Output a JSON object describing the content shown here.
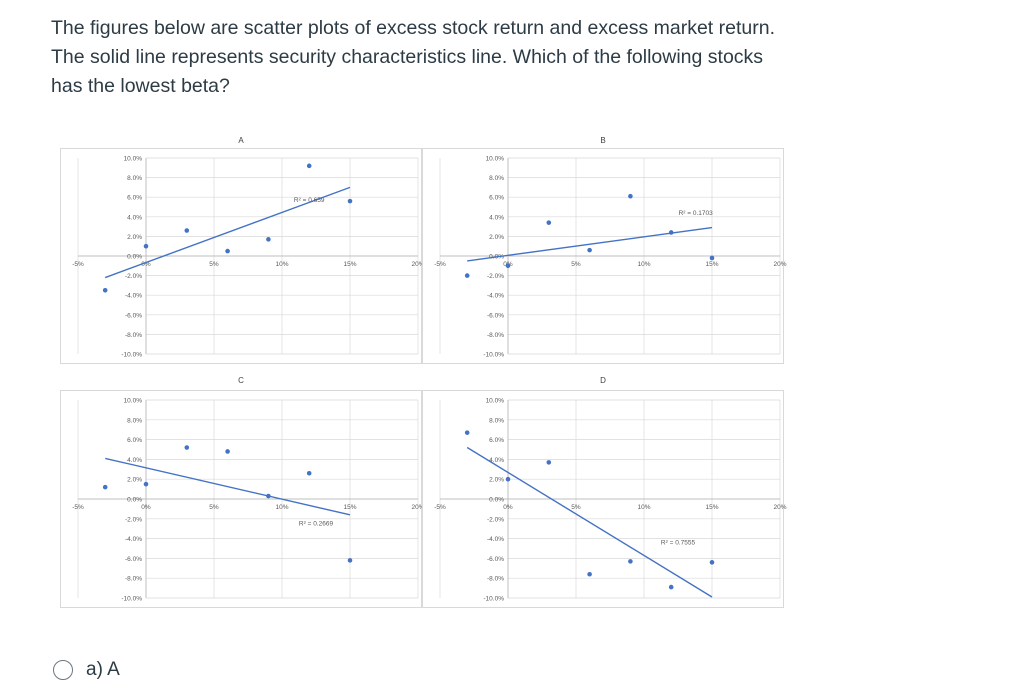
{
  "question": {
    "line1": "The figures below are scatter plots of excess stock return and excess market return.",
    "line2": "The solid line represents security characteristics line. Which of the following stocks",
    "line3": "has the lowest beta?"
  },
  "colors": {
    "points": "#4472c4",
    "line": "#4472c4",
    "grid": "#d9d9d9",
    "axis": "#bfbfbf",
    "label": "#595959"
  },
  "chart_data": [
    {
      "type": "scatter",
      "title": "A",
      "r2_label": "R² = 0.659",
      "xlim": [
        -5,
        20
      ],
      "ylim": [
        -10,
        10
      ],
      "x_ticks": [
        "-5%",
        "0%",
        "5%",
        "10%",
        "15%",
        "20%"
      ],
      "y_ticks": [
        "10.0%",
        "8.0%",
        "6.0%",
        "4.0%",
        "2.0%",
        "0.0%",
        "-2.0%",
        "-4.0%",
        "-6.0%",
        "-8.0%",
        "-10.0%"
      ],
      "points": [
        [
          -3,
          -3.5
        ],
        [
          0,
          1
        ],
        [
          3,
          2.6
        ],
        [
          6,
          0.5
        ],
        [
          9,
          1.7
        ],
        [
          12,
          9.2
        ],
        [
          15,
          5.6
        ]
      ],
      "trendline": [
        [
          -3,
          -2.2
        ],
        [
          15,
          7
        ]
      ],
      "grid": true,
      "legend": "none"
    },
    {
      "type": "scatter",
      "title": "B",
      "r2_label": "R² = 0.1703",
      "xlim": [
        -5,
        20
      ],
      "ylim": [
        -10,
        10
      ],
      "x_ticks": [
        "-5%",
        "0%",
        "5%",
        "10%",
        "15%",
        "20%"
      ],
      "y_ticks": [
        "10.0%",
        "8.0%",
        "6.0%",
        "4.0%",
        "2.0%",
        "0.0%",
        "-2.0%",
        "-4.0%",
        "-6.0%",
        "-8.0%",
        "-10.0%"
      ],
      "points": [
        [
          -3,
          -2
        ],
        [
          0,
          -1
        ],
        [
          3,
          3.4
        ],
        [
          6,
          0.6
        ],
        [
          9,
          6.1
        ],
        [
          12,
          2.4
        ],
        [
          15,
          -0.2
        ]
      ],
      "trendline": [
        [
          -3,
          -0.5
        ],
        [
          15,
          2.9
        ]
      ],
      "grid": true,
      "legend": "none"
    },
    {
      "type": "scatter",
      "title": "C",
      "r2_label": "R² = 0.2669",
      "xlim": [
        -5,
        20
      ],
      "ylim": [
        -10,
        10
      ],
      "x_ticks": [
        "-5%",
        "0%",
        "5%",
        "10%",
        "15%",
        "20%"
      ],
      "y_ticks": [
        "10.0%",
        "8.0%",
        "6.0%",
        "4.0%",
        "2.0%",
        "0.0%",
        "-2.0%",
        "-4.0%",
        "-6.0%",
        "-8.0%",
        "-10.0%"
      ],
      "points": [
        [
          -3,
          1.2
        ],
        [
          0,
          1.5
        ],
        [
          3,
          5.2
        ],
        [
          6,
          4.8
        ],
        [
          9,
          0.3
        ],
        [
          12,
          2.6
        ],
        [
          15,
          -6.2
        ]
      ],
      "trendline": [
        [
          -3,
          4.1
        ],
        [
          15,
          -1.6
        ]
      ],
      "grid": true,
      "legend": "none"
    },
    {
      "type": "scatter",
      "title": "D",
      "r2_label": "R² = 0.7555",
      "xlim": [
        -5,
        20
      ],
      "ylim": [
        -10,
        10
      ],
      "x_ticks": [
        "-5%",
        "0%",
        "5%",
        "10%",
        "15%",
        "20%"
      ],
      "y_ticks": [
        "10.0%",
        "8.0%",
        "6.0%",
        "4.0%",
        "2.0%",
        "0.0%",
        "-2.0%",
        "-4.0%",
        "-6.0%",
        "-8.0%",
        "-10.0%"
      ],
      "points": [
        [
          -3,
          6.7
        ],
        [
          0,
          2
        ],
        [
          3,
          3.7
        ],
        [
          6,
          -7.6
        ],
        [
          9,
          -6.3
        ],
        [
          12,
          -8.9
        ],
        [
          15,
          -6.4
        ]
      ],
      "trendline": [
        [
          -3,
          5.2
        ],
        [
          15,
          -9.9
        ]
      ],
      "grid": true,
      "legend": "none"
    }
  ],
  "option": {
    "label": "a) A"
  }
}
